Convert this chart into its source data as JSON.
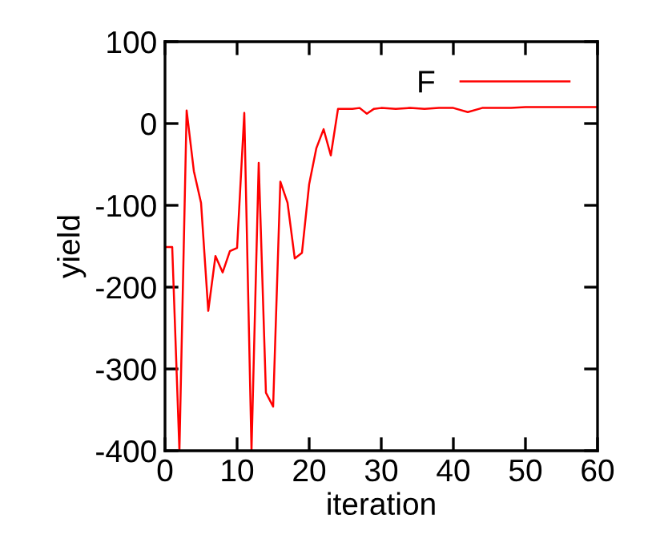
{
  "chart_data": {
    "type": "line",
    "xlabel": "iteration",
    "ylabel": "yield",
    "x": [
      0,
      1,
      2,
      3,
      4,
      5,
      6,
      7,
      8,
      9,
      10,
      11,
      12,
      13,
      14,
      15,
      16,
      17,
      18,
      19,
      20,
      21,
      22,
      23,
      24,
      25,
      26,
      27,
      28,
      29,
      30,
      32,
      34,
      36,
      38,
      40,
      42,
      44,
      46,
      48,
      50,
      52,
      54,
      56,
      58,
      60
    ],
    "series": [
      {
        "name": "F",
        "color": "#ff0000",
        "values": [
          -151,
          -151,
          -400,
          16,
          -58,
          -97,
          -229,
          -162,
          -182,
          -156,
          -152,
          13,
          -400,
          -48,
          -329,
          -346,
          -71,
          -97,
          -165,
          -158,
          -74,
          -30,
          -7,
          -39,
          18,
          18,
          18,
          19,
          12,
          18,
          19,
          18,
          19,
          18,
          19,
          19,
          14,
          19,
          19,
          19,
          20,
          20,
          20,
          20,
          20,
          20
        ]
      }
    ],
    "xlim": [
      0,
      60
    ],
    "ylim": [
      -400,
      100
    ],
    "xticks": [
      0,
      10,
      20,
      30,
      40,
      50,
      60
    ],
    "yticks": [
      -400,
      -300,
      -200,
      -100,
      0,
      100
    ],
    "grid": false,
    "legend": "top right",
    "line_style": "solid",
    "marker": "none"
  }
}
